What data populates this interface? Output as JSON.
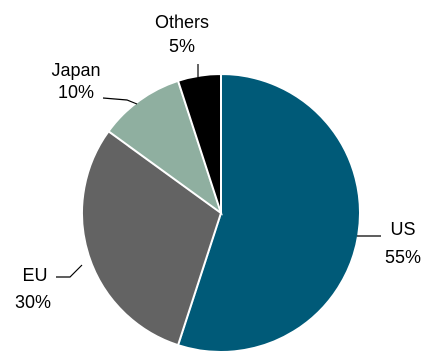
{
  "chart_data": {
    "type": "pie",
    "title": "",
    "slices": [
      {
        "label": "US",
        "value": 55,
        "value_label": "55%",
        "color": "#005A78"
      },
      {
        "label": "EU",
        "value": 30,
        "value_label": "30%",
        "color": "#636363"
      },
      {
        "label": "Japan",
        "value": 10,
        "value_label": "10%",
        "color": "#8FAFA0"
      },
      {
        "label": "Others",
        "value": 5,
        "value_label": "5%",
        "color": "#000000"
      }
    ],
    "start_angle_deg": 0,
    "direction": "clockwise",
    "legend": "none",
    "labels": "outside with leader lines"
  }
}
